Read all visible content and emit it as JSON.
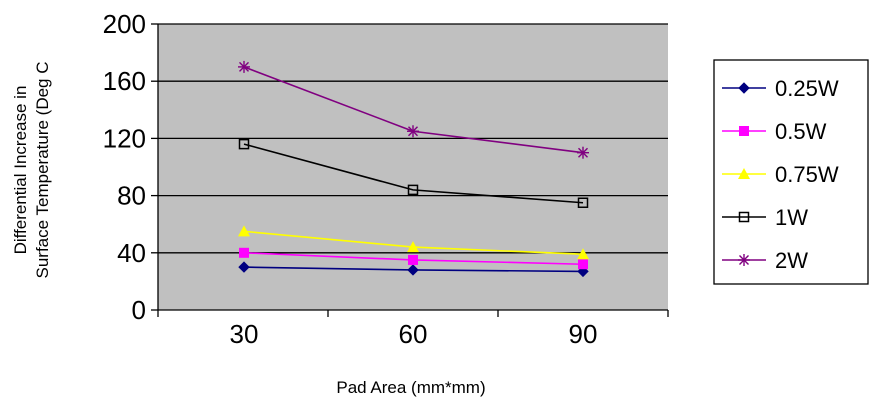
{
  "chart_data": {
    "type": "line",
    "xlabel": "Pad Area (mm*mm)",
    "ylabel_lines": [
      "Differential Increase in",
      "Surface Temperature (Deg C"
    ],
    "x": [
      30,
      60,
      90
    ],
    "ylim": [
      0,
      200
    ],
    "y_ticks": [
      0,
      40,
      80,
      120,
      160,
      200
    ],
    "grid": true,
    "legend_position": "right",
    "plot_background": "#c0c0c0",
    "series": [
      {
        "name": "0.25W",
        "values": [
          30,
          28,
          27
        ],
        "color": "#000080",
        "marker": "diamond"
      },
      {
        "name": "0.5W",
        "values": [
          40,
          35,
          32
        ],
        "color": "#ff00ff",
        "marker": "square"
      },
      {
        "name": "0.75W",
        "values": [
          55,
          44,
          39
        ],
        "color": "#ffff00",
        "marker": "triangle"
      },
      {
        "name": "1W",
        "values": [
          116,
          84,
          75
        ],
        "color": "#000000",
        "marker": "hollow-square"
      },
      {
        "name": "2W",
        "values": [
          170,
          125,
          110
        ],
        "color": "#800080",
        "marker": "star"
      }
    ]
  }
}
